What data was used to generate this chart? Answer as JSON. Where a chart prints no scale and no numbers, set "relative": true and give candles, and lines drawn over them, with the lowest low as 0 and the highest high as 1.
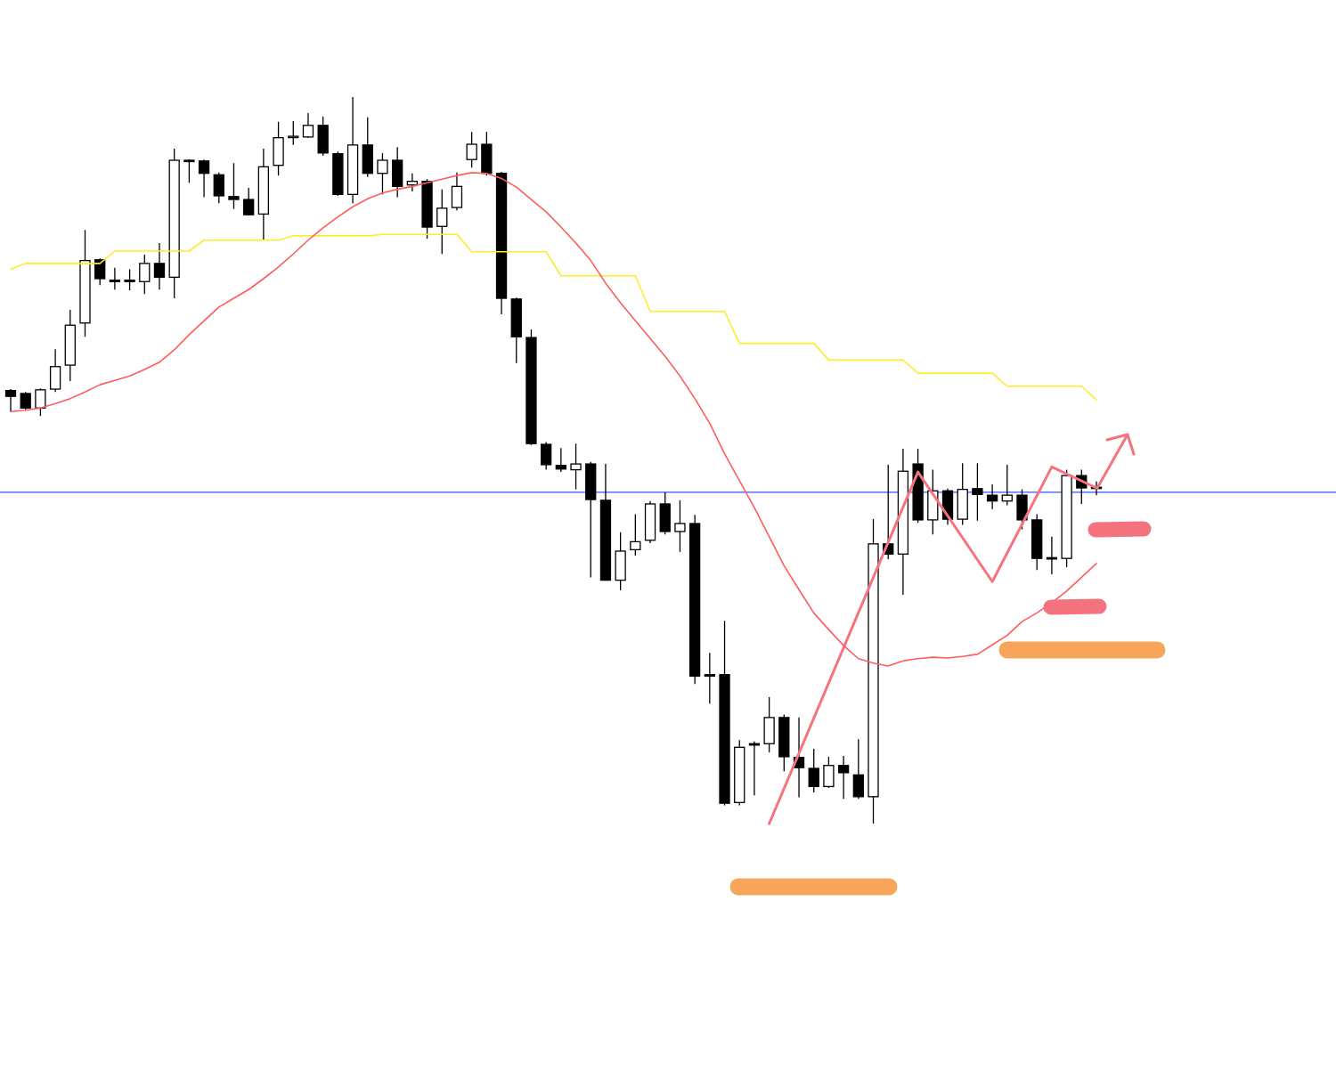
{
  "chart_data": {
    "type": "candlestick",
    "relative": true,
    "categories": [
      null,
      null,
      null,
      null,
      null,
      null,
      null,
      null,
      null,
      null,
      null,
      null,
      null,
      null,
      null,
      null,
      null,
      null,
      null,
      null,
      null,
      null,
      null,
      null,
      null,
      null,
      null,
      null,
      null,
      null,
      null,
      null,
      null,
      null,
      null,
      null,
      null,
      null,
      null,
      null,
      null,
      null,
      null,
      null,
      null,
      null,
      null,
      null,
      null,
      null,
      null,
      null,
      null,
      null,
      null,
      null,
      null,
      null,
      null,
      null,
      null,
      null,
      null,
      null,
      null,
      null,
      null,
      null,
      null,
      null,
      null,
      null,
      null,
      null
    ],
    "ohlc": [
      [
        0.596,
        0.598,
        0.567,
        0.588
      ],
      [
        0.592,
        0.594,
        0.57,
        0.572
      ],
      [
        0.572,
        0.599,
        0.561,
        0.597
      ],
      [
        0.598,
        0.653,
        0.594,
        0.629
      ],
      [
        0.631,
        0.707,
        0.609,
        0.686
      ],
      [
        0.689,
        0.817,
        0.67,
        0.775
      ],
      [
        0.776,
        0.778,
        0.741,
        0.75
      ],
      [
        0.748,
        0.765,
        0.735,
        0.746
      ],
      [
        0.748,
        0.763,
        0.734,
        0.746
      ],
      [
        0.746,
        0.783,
        0.729,
        0.771
      ],
      [
        0.771,
        0.799,
        0.735,
        0.752
      ],
      [
        0.752,
        0.929,
        0.723,
        0.913
      ],
      [
        0.913,
        0.914,
        0.882,
        0.912
      ],
      [
        0.912,
        0.914,
        0.862,
        0.895
      ],
      [
        0.893,
        0.896,
        0.854,
        0.864
      ],
      [
        0.863,
        0.909,
        0.846,
        0.859
      ],
      [
        0.859,
        0.875,
        0.837,
        0.838
      ],
      [
        0.839,
        0.929,
        0.803,
        0.904
      ],
      [
        0.906,
        0.966,
        0.892,
        0.944
      ],
      [
        0.945,
        0.967,
        0.934,
        0.946
      ],
      [
        0.945,
        0.978,
        0.944,
        0.961
      ],
      [
        0.961,
        0.973,
        0.919,
        0.923
      ],
      [
        0.922,
        0.925,
        0.864,
        0.866
      ],
      [
        0.866,
        1,
        0.854,
        0.934
      ],
      [
        0.934,
        0.972,
        0.89,
        0.895
      ],
      [
        0.895,
        0.923,
        0.866,
        0.913
      ],
      [
        0.913,
        0.931,
        0.862,
        0.877
      ],
      [
        0.879,
        0.895,
        0.87,
        0.884
      ],
      [
        0.884,
        0.887,
        0.805,
        0.821
      ],
      [
        0.822,
        0.873,
        0.784,
        0.847
      ],
      [
        0.848,
        0.896,
        0.844,
        0.877
      ],
      [
        0.914,
        0.952,
        0.903,
        0.935
      ],
      [
        0.935,
        0.952,
        0.892,
        0.895
      ],
      [
        0.895,
        0.897,
        0.701,
        0.723
      ],
      [
        0.722,
        0.724,
        0.634,
        0.67
      ],
      [
        0.669,
        0.68,
        0.521,
        0.523
      ],
      [
        0.522,
        0.525,
        0.487,
        0.494
      ],
      [
        0.493,
        0.517,
        0.484,
        0.488
      ],
      [
        0.487,
        0.523,
        0.46,
        0.495
      ],
      [
        0.495,
        0.498,
        0.339,
        0.446
      ],
      [
        0.445,
        0.495,
        0.335,
        0.335
      ],
      [
        0.335,
        0.401,
        0.321,
        0.375
      ],
      [
        0.377,
        0.426,
        0.369,
        0.388
      ],
      [
        0.39,
        0.444,
        0.386,
        0.44
      ],
      [
        0.44,
        0.456,
        0.398,
        0.402
      ],
      [
        0.402,
        0.445,
        0.374,
        0.413
      ],
      [
        0.413,
        0.425,
        0.192,
        0.203
      ],
      [
        0.205,
        0.235,
        0.165,
        0.203
      ],
      [
        0.205,
        0.279,
        0.025,
        0.028
      ],
      [
        0.029,
        0.115,
        0.025,
        0.105
      ],
      [
        0.11,
        0.113,
        0.039,
        0.108
      ],
      [
        0.11,
        0.174,
        0.098,
        0.146
      ],
      [
        0.146,
        0.15,
        0.072,
        0.092
      ],
      [
        0.091,
        0.146,
        0.036,
        0.077
      ],
      [
        0.076,
        0.103,
        0.043,
        0.051
      ],
      [
        0.051,
        0.092,
        0.049,
        0.08
      ],
      [
        0.08,
        0.093,
        0.034,
        0.07
      ],
      [
        0.067,
        0.116,
        0.034,
        0.037
      ],
      [
        0.037,
        0.419,
        0,
        0.385
      ],
      [
        0.385,
        0.494,
        0.364,
        0.371
      ],
      [
        0.371,
        0.516,
        0.315,
        0.485
      ],
      [
        0.495,
        0.516,
        0.414,
        0.418
      ],
      [
        0.418,
        0.487,
        0.398,
        0.458
      ],
      [
        0.458,
        0.461,
        0.411,
        0.419
      ],
      [
        0.419,
        0.496,
        0.411,
        0.46
      ],
      [
        0.461,
        0.496,
        0.417,
        0.453
      ],
      [
        0.452,
        0.467,
        0.433,
        0.444
      ],
      [
        0.444,
        0.494,
        0.438,
        0.452
      ],
      [
        0.452,
        0.46,
        0.405,
        0.418
      ],
      [
        0.418,
        0.426,
        0.349,
        0.365
      ],
      [
        0.366,
        0.395,
        0.343,
        0.365
      ],
      [
        0.365,
        0.487,
        0.353,
        0.479
      ],
      [
        0.479,
        0.487,
        0.44,
        0.462
      ],
      [
        0.463,
        0.471,
        0.452,
        0.462
      ]
    ],
    "series": [
      {
        "type": "line",
        "color": "#ffeb2a",
        "values": [
          0.763,
          0.771,
          0.771,
          0.771,
          0.771,
          0.771,
          0.771,
          0.788,
          0.788,
          0.788,
          0.788,
          0.788,
          0.788,
          0.803,
          0.803,
          0.803,
          0.803,
          0.803,
          0.803,
          0.809,
          0.809,
          0.809,
          0.809,
          0.809,
          0.809,
          0.811,
          0.811,
          0.811,
          0.811,
          0.811,
          0.811,
          0.787,
          0.787,
          0.787,
          0.787,
          0.787,
          0.787,
          0.754,
          0.754,
          0.754,
          0.754,
          0.754,
          0.754,
          0.705,
          0.705,
          0.705,
          0.705,
          0.705,
          0.705,
          0.661,
          0.661,
          0.661,
          0.661,
          0.661,
          0.661,
          0.638,
          0.638,
          0.638,
          0.638,
          0.638,
          0.638,
          0.62,
          0.62,
          0.62,
          0.62,
          0.62,
          0.62,
          0.602,
          0.602,
          0.602,
          0.602,
          0.602,
          0.602,
          0.583
        ]
      },
      {
        "type": "line",
        "color": "#f5737f",
        "values": [
          null,
          null,
          null,
          null,
          null,
          null,
          null,
          null,
          null,
          null,
          null,
          null,
          null,
          null,
          null,
          null,
          null,
          null,
          null,
          null,
          null,
          null,
          null,
          null,
          null,
          null,
          null,
          null,
          null,
          null,
          null,
          null,
          null,
          null,
          null,
          null,
          null,
          null,
          null,
          null,
          null,
          null,
          null,
          null,
          null,
          null,
          null,
          null,
          null,
          null,
          null,
          0,
          null,
          null,
          null,
          null,
          null,
          null,
          null,
          null,
          null,
          0.484,
          null,
          null,
          null,
          null,
          0.333,
          null,
          null,
          null,
          0.491,
          null,
          null,
          0.462
        ]
      },
      {
        "type": "line",
        "color": "#ff5c5c",
        "values": [
          0.567,
          0.569,
          0.572,
          0.578,
          0.585,
          0.594,
          0.604,
          0.61,
          0.616,
          0.625,
          0.635,
          0.652,
          0.673,
          0.692,
          0.711,
          0.723,
          0.735,
          0.75,
          0.766,
          0.784,
          0.803,
          0.82,
          0.835,
          0.849,
          0.86,
          0.868,
          0.873,
          0.877,
          0.882,
          0.887,
          0.892,
          0.896,
          0.895,
          0.888,
          0.876,
          0.859,
          0.842,
          0.821,
          0.799,
          0.775,
          0.744,
          0.717,
          0.692,
          0.668,
          0.643,
          0.616,
          0.585,
          0.551,
          0.509,
          0.472,
          0.435,
          0.395,
          0.355,
          0.322,
          0.29,
          0.267,
          0.245,
          0.227,
          0.221,
          0.217,
          0.224,
          0.227,
          0.229,
          0.228,
          0.23,
          0.233,
          0.246,
          0.259,
          0.278,
          0.29,
          0.304,
          0.32,
          0.339,
          0.358
        ]
      }
    ],
    "ref_lines": [
      {
        "axis": "y",
        "value": 0.456,
        "color": "#3355ee"
      }
    ]
  }
}
